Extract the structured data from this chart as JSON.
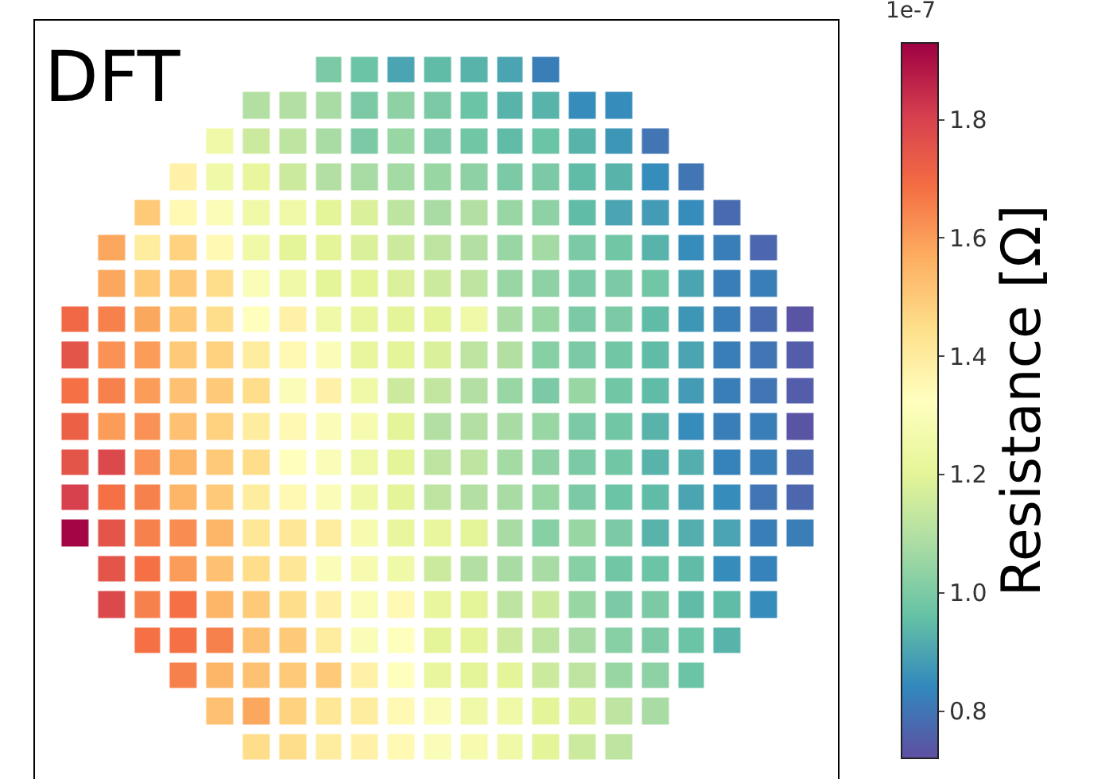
{
  "chart_data": {
    "type": "heatmap",
    "title": "DFT",
    "clabel": "Resistance [Ω]",
    "annotations": [
      "1e-7"
    ],
    "categories": [
      null,
      null,
      null,
      null,
      null,
      null,
      null,
      null,
      null,
      null,
      null,
      null,
      null,
      null,
      null,
      null,
      null,
      null,
      null,
      null,
      null
    ],
    "y_categories": [
      null,
      null,
      null,
      null,
      null,
      null,
      null,
      null,
      null,
      null,
      null,
      null,
      null,
      null,
      null,
      null,
      null,
      null,
      null,
      null
    ],
    "cells": [
      [
        null,
        null,
        null,
        null,
        null,
        null,
        null,
        1.0,
        0.97,
        0.9,
        0.95,
        0.93,
        0.9,
        0.82,
        null,
        null,
        null,
        null,
        null,
        null,
        null
      ],
      [
        null,
        null,
        null,
        null,
        null,
        1.1,
        1.1,
        1.08,
        1.0,
        1.03,
        1.0,
        0.97,
        0.93,
        0.93,
        0.85,
        0.85,
        null,
        null,
        null,
        null,
        null
      ],
      [
        null,
        null,
        null,
        null,
        1.25,
        1.15,
        1.12,
        1.08,
        1.0,
        1.05,
        1.0,
        0.98,
        0.95,
        0.97,
        0.93,
        0.87,
        0.8,
        null,
        null,
        null,
        null
      ],
      [
        null,
        null,
        null,
        1.38,
        1.25,
        1.22,
        1.15,
        1.1,
        1.08,
        1.07,
        1.05,
        1.03,
        1.0,
        1.0,
        0.95,
        0.93,
        0.85,
        0.8,
        null,
        null,
        null
      ],
      [
        null,
        null,
        1.5,
        1.35,
        1.3,
        1.25,
        1.25,
        1.2,
        1.18,
        1.12,
        1.08,
        1.1,
        1.05,
        1.03,
        0.95,
        0.9,
        0.88,
        0.85,
        0.78,
        null,
        null
      ],
      [
        null,
        1.58,
        1.4,
        1.48,
        1.35,
        1.25,
        1.2,
        1.2,
        1.18,
        1.15,
        1.12,
        1.1,
        1.05,
        1.07,
        1.0,
        0.98,
        0.93,
        0.85,
        0.82,
        0.77,
        null
      ],
      [
        null,
        1.58,
        1.5,
        1.5,
        1.45,
        1.3,
        1.25,
        1.2,
        1.2,
        1.18,
        1.15,
        1.12,
        1.05,
        1.03,
        1.0,
        1.0,
        0.98,
        0.9,
        0.82,
        0.82,
        null
      ],
      [
        1.7,
        1.65,
        1.58,
        1.5,
        1.45,
        1.32,
        1.38,
        1.25,
        1.22,
        1.2,
        1.2,
        1.25,
        1.08,
        1.05,
        1.0,
        1.0,
        0.95,
        0.87,
        0.82,
        0.78,
        0.73
      ],
      [
        1.75,
        1.62,
        1.6,
        1.5,
        1.48,
        1.4,
        1.35,
        1.3,
        1.22,
        1.2,
        1.18,
        1.12,
        1.1,
        1.02,
        1.0,
        0.98,
        0.95,
        0.9,
        0.82,
        0.8,
        0.75
      ],
      [
        1.68,
        1.65,
        1.6,
        1.52,
        1.5,
        1.45,
        1.3,
        1.38,
        1.25,
        1.15,
        1.13,
        1.1,
        1.05,
        1.0,
        1.05,
        0.98,
        0.95,
        0.88,
        0.82,
        0.8,
        0.75
      ],
      [
        1.72,
        1.6,
        1.62,
        1.52,
        1.48,
        1.4,
        1.35,
        1.3,
        1.28,
        1.2,
        1.1,
        1.1,
        1.08,
        1.05,
        1.0,
        0.98,
        0.93,
        0.85,
        0.82,
        0.82,
        0.73
      ],
      [
        1.75,
        1.78,
        1.62,
        1.55,
        1.5,
        1.45,
        1.33,
        1.3,
        1.25,
        1.2,
        1.12,
        1.12,
        1.07,
        1.03,
        1.0,
        0.98,
        0.93,
        0.92,
        0.83,
        0.82,
        0.77
      ],
      [
        1.8,
        1.68,
        1.65,
        1.55,
        1.5,
        1.4,
        1.35,
        1.3,
        1.25,
        1.2,
        1.12,
        1.1,
        1.08,
        1.05,
        1.0,
        0.97,
        0.95,
        0.9,
        0.85,
        0.8,
        0.77
      ],
      [
        1.92,
        1.75,
        1.65,
        1.63,
        1.55,
        1.42,
        1.42,
        1.4,
        1.28,
        1.22,
        1.22,
        1.2,
        1.08,
        1.02,
        1.05,
        1.0,
        0.93,
        0.92,
        0.9,
        0.82,
        0.82
      ],
      [
        null,
        1.75,
        1.68,
        1.6,
        1.52,
        1.45,
        1.42,
        1.3,
        1.28,
        1.25,
        1.15,
        1.1,
        1.08,
        1.08,
        1.02,
        0.98,
        0.97,
        0.95,
        0.85,
        0.83,
        null
      ],
      [
        null,
        1.78,
        1.65,
        1.68,
        1.55,
        1.5,
        1.45,
        1.38,
        1.3,
        1.35,
        1.22,
        1.2,
        1.12,
        1.15,
        1.05,
        1.0,
        1.0,
        0.95,
        0.95,
        0.85,
        null
      ],
      [
        null,
        null,
        1.68,
        1.68,
        1.65,
        1.52,
        1.5,
        1.4,
        1.3,
        1.32,
        1.2,
        1.2,
        1.15,
        1.12,
        1.08,
        1.02,
        1.0,
        0.97,
        0.93,
        null,
        null
      ],
      [
        null,
        null,
        null,
        1.65,
        1.55,
        1.52,
        1.5,
        1.5,
        1.38,
        1.32,
        1.22,
        1.2,
        1.2,
        1.15,
        1.12,
        1.05,
        1.03,
        0.97,
        null,
        null,
        null
      ],
      [
        null,
        null,
        null,
        null,
        1.52,
        1.58,
        1.48,
        1.42,
        1.4,
        1.35,
        1.3,
        1.25,
        1.25,
        1.2,
        1.18,
        1.12,
        1.08,
        null,
        null,
        null,
        null
      ],
      [
        null,
        null,
        null,
        null,
        null,
        1.45,
        1.45,
        1.4,
        1.38,
        1.35,
        1.3,
        1.28,
        1.25,
        1.2,
        1.15,
        1.12,
        null,
        null,
        null,
        null,
        null
      ]
    ],
    "clim": [
      0.72,
      1.93
    ],
    "cticks": [
      0.8,
      {
        "value": 1,
        "label": "1.0"
      },
      1.2,
      1.4,
      1.6,
      1.8
    ],
    "tick_labels": false
  }
}
